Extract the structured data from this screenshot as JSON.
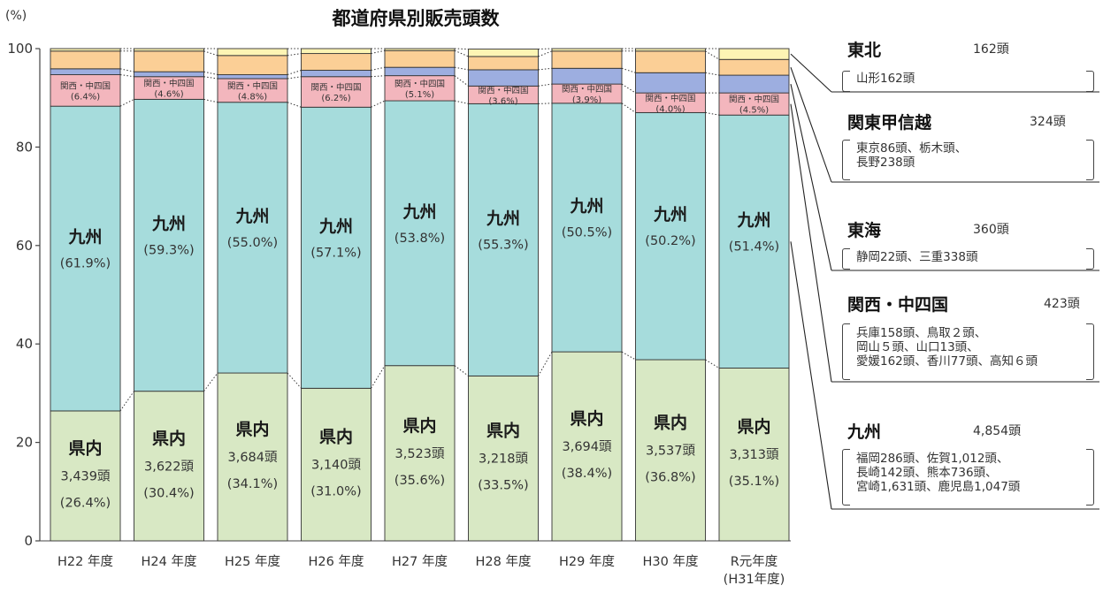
{
  "chart_data": {
    "type": "bar",
    "stacked": true,
    "title": "都道府県別販売頭数",
    "unit_label": "(%)",
    "ylim": [
      0,
      100
    ],
    "yticks": [
      0,
      20,
      40,
      60,
      80,
      100
    ],
    "categories": [
      "H22 年度",
      "H24 年度",
      "H25 年度",
      "H26 年度",
      "H27 年度",
      "H28 年度",
      "H29 年度",
      "H30 年度",
      "R元年度"
    ],
    "category_sublabels": [
      "",
      "",
      "",
      "",
      "",
      "",
      "",
      "",
      "(H31年度)"
    ],
    "series": [
      {
        "name": "県内",
        "color": "#d8e8c4",
        "values": [
          26.4,
          30.4,
          34.1,
          31.0,
          35.6,
          33.5,
          38.4,
          36.8,
          35.1
        ],
        "heads": [
          "3,439頭",
          "3,622頭",
          "3,684頭",
          "3,140頭",
          "3,523頭",
          "3,218頭",
          "3,694頭",
          "3,537頭",
          "3,313頭"
        ],
        "pct_labels": [
          "(26.4%)",
          "(30.4%)",
          "(34.1%)",
          "(31.0%)",
          "(35.6%)",
          "(33.5%)",
          "(38.4%)",
          "(36.8%)",
          "(35.1%)"
        ]
      },
      {
        "name": "九州",
        "color": "#a6dcdc",
        "values": [
          61.9,
          59.3,
          55.0,
          57.1,
          53.8,
          55.3,
          50.5,
          50.2,
          51.4
        ],
        "pct_labels": [
          "(61.9%)",
          "(59.3%)",
          "(55.0%)",
          "(57.1%)",
          "(53.8%)",
          "(55.3%)",
          "(50.5%)",
          "(50.2%)",
          "(51.4%)"
        ]
      },
      {
        "name": "関西・中四国",
        "color": "#f3b6bd",
        "values": [
          6.4,
          4.6,
          4.8,
          6.2,
          5.1,
          3.6,
          3.9,
          4.0,
          4.5
        ],
        "pct_labels": [
          "(6.4%)",
          "(4.6%)",
          "(4.8%)",
          "(6.2%)",
          "(5.1%)",
          "(3.6%)",
          "(3.9%)",
          "(4.0%)",
          "(4.5%)"
        ]
      },
      {
        "name": "東海",
        "color": "#9daee0",
        "values": [
          1.2,
          1.0,
          0.8,
          1.3,
          1.7,
          3.3,
          3.2,
          4.1,
          3.6
        ]
      },
      {
        "name": "関東甲信越",
        "color": "#fbcf96",
        "values": [
          3.6,
          4.2,
          3.9,
          3.4,
          3.4,
          2.7,
          3.5,
          4.4,
          3.2
        ]
      },
      {
        "name": "東北",
        "color": "#fdf4b4",
        "values": [
          0.5,
          0.5,
          1.4,
          1.0,
          0.4,
          1.5,
          0.5,
          0.5,
          2.2
        ]
      }
    ],
    "inner_label_kyushu": "九州",
    "inner_label_kennai": "県内",
    "inner_label_kansai": "関西・中四国",
    "legend_regions": [
      {
        "name": "東北",
        "total": "162頭",
        "detail": [
          "山形162頭"
        ]
      },
      {
        "name": "関東甲信越",
        "total": "324頭",
        "detail": [
          "東京86頭、栃木頭、",
          "長野238頭"
        ]
      },
      {
        "name": "東海",
        "total": "360頭",
        "detail": [
          "静岡22頭、三重338頭"
        ]
      },
      {
        "name": "関西・中四国",
        "total": "423頭",
        "detail": [
          "兵庫158頭、鳥取２頭、",
          "岡山５頭、山口13頭、",
          "愛媛162頭、香川77頭、高知６頭"
        ]
      },
      {
        "name": "九州",
        "total": "4,854頭",
        "detail": [
          "福岡286頭、佐賀1,012頭、",
          "長崎142頭、熊本736頭、",
          "宮崎1,631頭、鹿児島1,047頭"
        ]
      }
    ]
  }
}
